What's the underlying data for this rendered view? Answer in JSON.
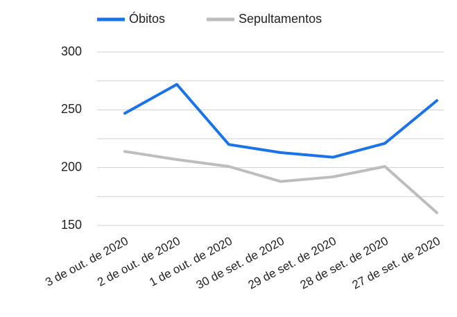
{
  "chart_data": {
    "type": "line",
    "categories": [
      "3 de out. de 2020",
      "2 de out. de 2020",
      "1 de out. de 2020",
      "30 de set. de 2020",
      "29 de set. de 2020",
      "28 de set. de 2020",
      "27 de set. de 2020"
    ],
    "series": [
      {
        "name": "Óbitos",
        "color": "#1a73e8",
        "values": [
          247,
          272,
          220,
          213,
          209,
          221,
          258
        ]
      },
      {
        "name": "Sepultamentos",
        "color": "#bdbdbd",
        "values": [
          214,
          207,
          201,
          188,
          192,
          201,
          161
        ]
      }
    ],
    "ylim": [
      150,
      300
    ],
    "yticks": [
      150,
      200,
      250,
      300
    ],
    "minor_yticks": [
      175,
      225,
      275
    ],
    "grid": true,
    "legend": "top"
  }
}
